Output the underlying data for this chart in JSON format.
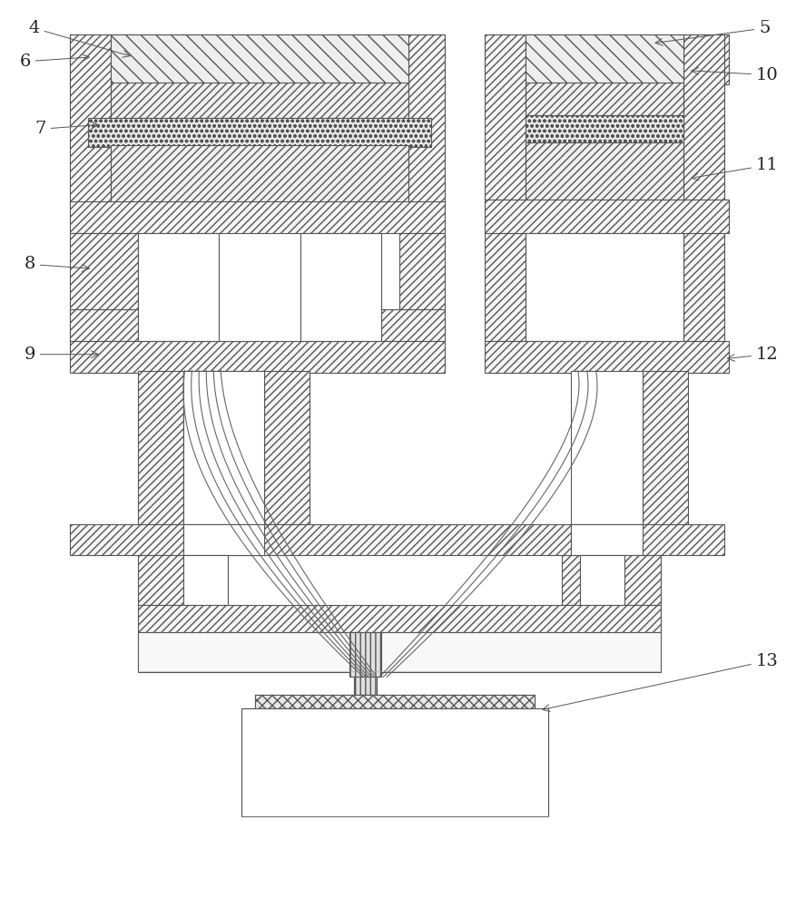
{
  "bg_color": "#ffffff",
  "lc": "#555555",
  "dc": "#222222",
  "hatch_fc": "#f5f5f5",
  "fig_w": 8.77,
  "fig_h": 10.0,
  "dpi": 100
}
